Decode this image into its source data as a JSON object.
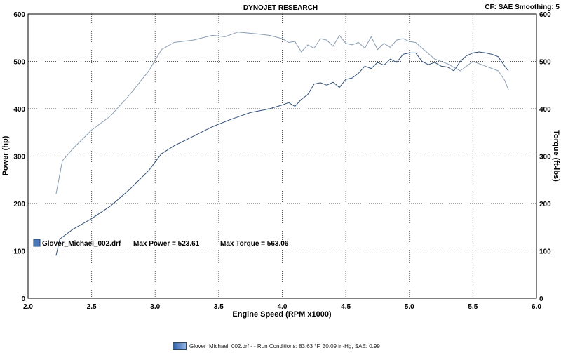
{
  "header": {
    "title": "DYNOJET RESEARCH",
    "info": "CF: SAE  Smoothing: 5"
  },
  "annotation": {
    "file": "Glover_Michael_002.drf",
    "max_power_label": "Max Power = 523.61",
    "max_torque_label": "Max Torque = 563.06"
  },
  "footer": {
    "text": "Glover_Michael_002.drf -  -  Run Conditions: 83.63 °F, 30.09 in-Hg, SAE: 0.99"
  },
  "colors": {
    "power_line": "#2f4f78",
    "torque_line": "#8a9db3",
    "grid": "#555555",
    "swatch": "#4a78b8"
  },
  "chart_data": {
    "type": "line",
    "xlabel": "Engine Speed (RPM x1000)",
    "ylabel": "Power (hp)",
    "y2label": "Torque (ft-lbs)",
    "xlim": [
      2.0,
      6.0
    ],
    "ylim": [
      0,
      600
    ],
    "y2lim": [
      0,
      600
    ],
    "xticks": [
      "2.0",
      "2.5",
      "3.0",
      "3.5",
      "4.0",
      "4.5",
      "5.0",
      "5.5",
      "6.0"
    ],
    "yticks": [
      "0",
      "100",
      "200",
      "300",
      "400",
      "500",
      "600"
    ],
    "y2ticks": [
      "0",
      "100",
      "200",
      "300",
      "400",
      "500",
      "600"
    ],
    "grid": true,
    "series": [
      {
        "key": "power",
        "x": [
          2.22,
          2.25,
          2.35,
          2.5,
          2.65,
          2.8,
          2.95,
          3.05,
          3.15,
          3.3,
          3.45,
          3.6,
          3.75,
          3.9,
          4.0,
          4.05,
          4.1,
          4.15,
          4.2,
          4.25,
          4.3,
          4.35,
          4.4,
          4.45,
          4.5,
          4.55,
          4.6,
          4.65,
          4.7,
          4.75,
          4.8,
          4.85,
          4.9,
          4.95,
          5.0,
          5.05,
          5.1,
          5.15,
          5.2,
          5.25,
          5.3,
          5.35,
          5.4,
          5.45,
          5.5,
          5.55,
          5.6,
          5.65,
          5.7,
          5.75,
          5.78
        ],
        "y": [
          90,
          125,
          145,
          168,
          195,
          230,
          270,
          305,
          322,
          342,
          362,
          378,
          392,
          400,
          408,
          413,
          405,
          420,
          430,
          452,
          455,
          450,
          456,
          445,
          462,
          465,
          475,
          490,
          485,
          498,
          492,
          505,
          498,
          515,
          518,
          518,
          500,
          493,
          498,
          490,
          488,
          480,
          500,
          512,
          518,
          520,
          518,
          515,
          510,
          490,
          480
        ]
      },
      {
        "key": "torque",
        "x": [
          2.22,
          2.27,
          2.35,
          2.5,
          2.65,
          2.8,
          2.95,
          3.05,
          3.15,
          3.3,
          3.45,
          3.55,
          3.65,
          3.8,
          3.9,
          4.0,
          4.05,
          4.1,
          4.15,
          4.2,
          4.25,
          4.3,
          4.35,
          4.4,
          4.45,
          4.5,
          4.55,
          4.6,
          4.65,
          4.7,
          4.75,
          4.8,
          4.85,
          4.9,
          4.95,
          5.0,
          5.05,
          5.1,
          5.2,
          5.3,
          5.4,
          5.5,
          5.6,
          5.7,
          5.75,
          5.78
        ],
        "y": [
          220,
          290,
          315,
          355,
          385,
          430,
          480,
          525,
          540,
          545,
          555,
          552,
          562,
          558,
          555,
          548,
          540,
          542,
          520,
          535,
          528,
          548,
          545,
          532,
          555,
          538,
          535,
          540,
          528,
          552,
          525,
          538,
          530,
          545,
          548,
          542,
          540,
          528,
          505,
          495,
          480,
          500,
          490,
          480,
          460,
          440
        ]
      }
    ]
  }
}
